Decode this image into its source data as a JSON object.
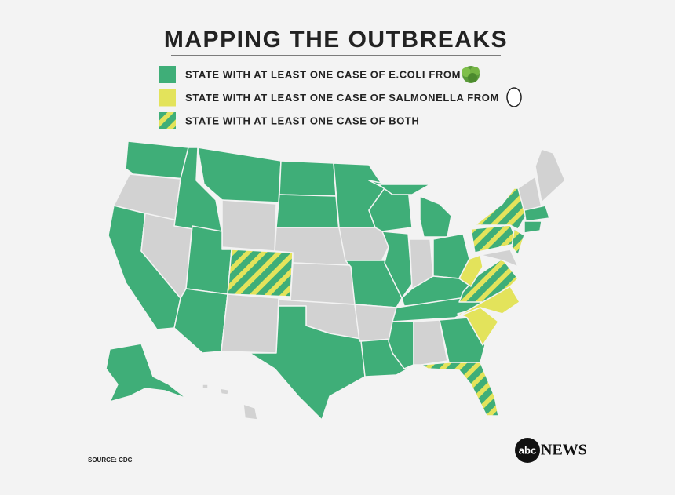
{
  "title": "MAPPING THE OUTBREAKS",
  "legend": [
    {
      "label": "STATE WITH AT LEAST ONE CASE OF E.COLI FROM",
      "color": "#3fae78"
    },
    {
      "label": "STATE WITH AT LEAST ONE CASE OF SALMONELLA FROM",
      "color": "#e3e35b"
    },
    {
      "label": "STATE WITH AT LEAST ONE CASE OF BOTH",
      "color": "hatch"
    }
  ],
  "source": "SOURCE: CDC",
  "logo": {
    "mark": "abc",
    "text": "NEWS"
  }
}
